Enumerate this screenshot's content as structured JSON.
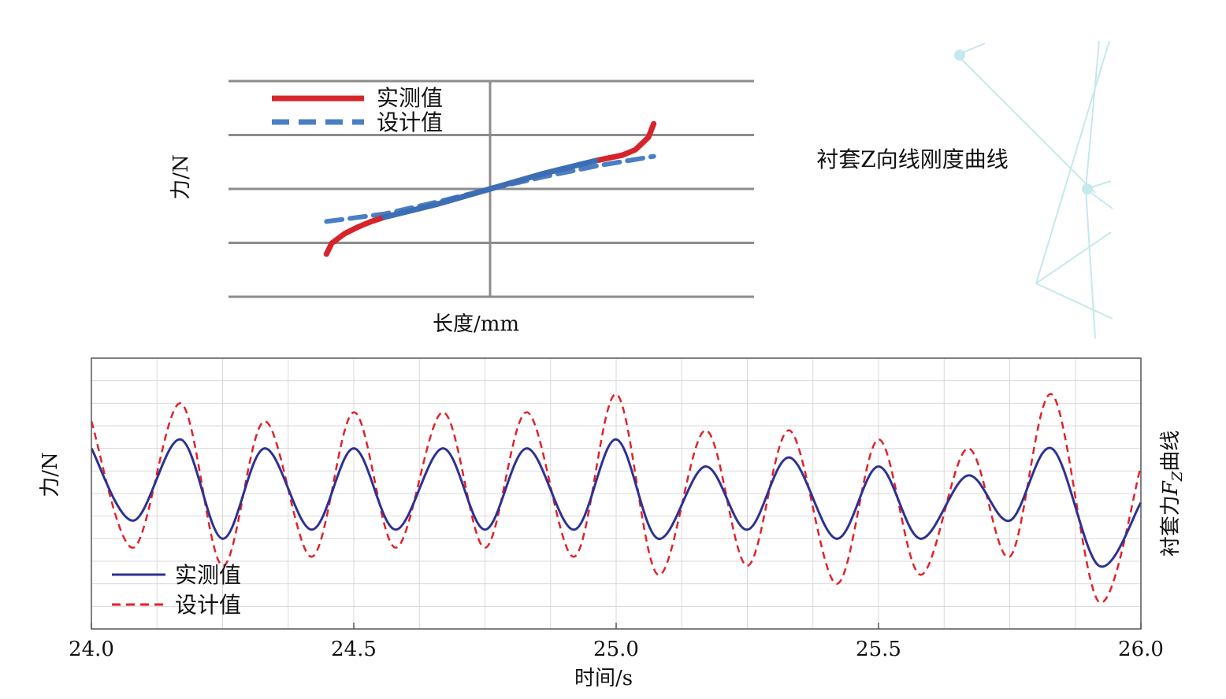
{
  "chart_data": [
    {
      "type": "line",
      "title": "衬套Z向线刚度曲线",
      "xlabel": "长度/mm",
      "ylabel": "力/N",
      "grid": true,
      "legend_position": "top-left",
      "xlim": [
        -1,
        1
      ],
      "ylim": [
        -2,
        2
      ],
      "series": [
        {
          "name": "实测值",
          "color": "#d6242a",
          "style": "solid",
          "x": [
            -0.62,
            -0.6,
            -0.55,
            -0.5,
            -0.45,
            -0.4,
            -0.3,
            -0.2,
            -0.1,
            0.0,
            0.1,
            0.2,
            0.3,
            0.4,
            0.5,
            0.55,
            0.6,
            0.62
          ],
          "y": [
            -1.2,
            -1.0,
            -0.82,
            -0.7,
            -0.6,
            -0.52,
            -0.4,
            -0.28,
            -0.14,
            0.0,
            0.14,
            0.28,
            0.4,
            0.52,
            0.62,
            0.72,
            0.95,
            1.2
          ]
        },
        {
          "name": "设计值",
          "color": "#4a7fc3",
          "style": "dashed",
          "x": [
            -0.62,
            -0.4,
            -0.2,
            0.0,
            0.2,
            0.4,
            0.62
          ],
          "y": [
            -0.6,
            -0.46,
            -0.24,
            0.0,
            0.22,
            0.42,
            0.6
          ]
        }
      ]
    },
    {
      "type": "line",
      "title": "衬套力FZ曲线",
      "title_main": "衬套力",
      "title_var": "F",
      "title_sub": "Z",
      "title_tail": "曲线",
      "xlabel": "时间/s",
      "ylabel": "力/N",
      "grid": true,
      "legend_position": "bottom-left",
      "xlim": [
        24.0,
        26.0
      ],
      "ylim": [
        -1.5,
        1.5
      ],
      "xticks": [
        "24.0",
        "24.5",
        "25.0",
        "25.5",
        "26.0"
      ],
      "series": [
        {
          "name": "实测值",
          "color": "#2e3192",
          "style": "solid",
          "x": [
            24.0,
            24.08,
            24.17,
            24.25,
            24.33,
            24.42,
            24.5,
            24.58,
            24.67,
            24.75,
            24.83,
            24.92,
            25.0,
            25.08,
            25.17,
            25.25,
            25.33,
            25.42,
            25.5,
            25.58,
            25.67,
            25.75,
            25.83,
            25.92,
            26.0
          ],
          "y": [
            0.5,
            -0.3,
            0.6,
            -0.5,
            0.5,
            -0.4,
            0.5,
            -0.4,
            0.5,
            -0.4,
            0.5,
            -0.4,
            0.6,
            -0.5,
            0.3,
            -0.4,
            0.4,
            -0.5,
            0.3,
            -0.5,
            0.2,
            -0.3,
            0.5,
            -0.8,
            -0.1
          ]
        },
        {
          "name": "设计值",
          "color": "#e0222a",
          "style": "dashed",
          "x": [
            24.0,
            24.08,
            24.17,
            24.25,
            24.33,
            24.42,
            24.5,
            24.58,
            24.67,
            24.75,
            24.83,
            24.92,
            25.0,
            25.08,
            25.17,
            25.25,
            25.33,
            25.42,
            25.5,
            25.58,
            25.67,
            25.75,
            25.83,
            25.92,
            26.0
          ],
          "y": [
            0.8,
            -0.6,
            1.0,
            -0.8,
            0.8,
            -0.7,
            0.9,
            -0.6,
            0.9,
            -0.6,
            0.9,
            -0.7,
            1.1,
            -0.9,
            0.7,
            -0.8,
            0.7,
            -1.0,
            0.6,
            -0.9,
            0.5,
            -0.7,
            1.1,
            -1.2,
            0.3
          ]
        }
      ]
    }
  ]
}
